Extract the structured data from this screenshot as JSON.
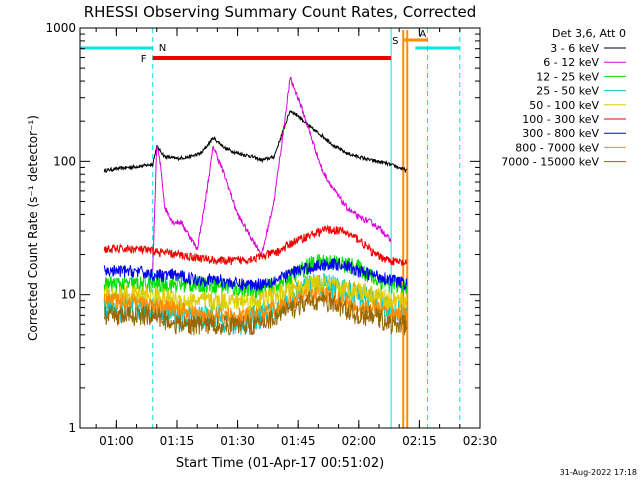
{
  "chart_data": {
    "type": "line",
    "title": "RHESSI Observing Summary Count Rates, Corrected",
    "xlabel": "Start Time (01-Apr-17 00:51:02)",
    "ylabel": "Corrected Count Rate (s⁻¹ detector⁻¹)",
    "y_scale": "log",
    "ylim": [
      1,
      1000
    ],
    "xlim": [
      "00:51",
      "02:30"
    ],
    "x_tick_labels": [
      "01:00",
      "01:15",
      "01:30",
      "01:45",
      "02:00",
      "02:15",
      "02:30"
    ],
    "y_tick_labels": [
      "1",
      "10",
      "100",
      "1000"
    ],
    "legend_title": "Det 3,6, Att 0",
    "legend_position": "top-right",
    "timestamp": "31-Aug-2022 17:18",
    "flags": [
      {
        "label": "N",
        "type": "night",
        "color": "#00e5e5"
      },
      {
        "label": "F",
        "type": "flare",
        "color": "#ee0000"
      },
      {
        "label": "S",
        "type": "saa",
        "color": "#00e5e5"
      },
      {
        "label": "A",
        "type": "attenuator",
        "color": "#ff8c00"
      }
    ],
    "series": [
      {
        "name": "3 - 6 keV",
        "color": "#000000",
        "x": [
          "00:57",
          "01:00",
          "01:03",
          "01:06",
          "01:09",
          "01:10",
          "01:12",
          "01:15",
          "01:18",
          "01:21",
          "01:24",
          "01:27",
          "01:30",
          "01:33",
          "01:36",
          "01:39",
          "01:41",
          "01:43",
          "01:45",
          "01:48",
          "01:51",
          "01:54",
          "01:57",
          "02:00",
          "02:03",
          "02:06",
          "02:09",
          "02:12"
        ],
        "values": [
          85,
          88,
          90,
          92,
          95,
          130,
          108,
          105,
          108,
          115,
          150,
          125,
          115,
          110,
          102,
          108,
          160,
          240,
          220,
          180,
          155,
          130,
          115,
          108,
          102,
          98,
          92,
          85
        ]
      },
      {
        "name": "6 - 12 keV",
        "color": "#dd00dd",
        "x": [
          "01:09",
          "01:10",
          "01:11",
          "01:12",
          "01:14",
          "01:16",
          "01:18",
          "01:20",
          "01:22",
          "01:24",
          "01:27",
          "01:30",
          "01:33",
          "01:36",
          "01:39",
          "01:41",
          "01:43",
          "01:45",
          "01:48",
          "01:51",
          "01:54",
          "01:57",
          "02:00",
          "02:03",
          "02:06",
          "02:08"
        ],
        "values": [
          15,
          135,
          90,
          45,
          35,
          35,
          28,
          22,
          50,
          130,
          75,
          40,
          28,
          20,
          50,
          140,
          420,
          300,
          160,
          85,
          60,
          45,
          38,
          35,
          30,
          25
        ]
      },
      {
        "name": "12 - 25 keV",
        "color": "#00dd00",
        "x": [
          "00:57",
          "01:05",
          "01:10",
          "01:15",
          "01:20",
          "01:25",
          "01:30",
          "01:35",
          "01:40",
          "01:44",
          "01:48",
          "01:52",
          "01:56",
          "02:00",
          "02:04",
          "02:08",
          "02:12"
        ],
        "values": [
          12,
          12,
          12,
          12,
          12,
          12,
          11,
          11,
          12,
          14,
          17,
          18,
          17,
          16,
          13,
          12,
          11
        ]
      },
      {
        "name": "25 - 50 keV",
        "color": "#00cccc",
        "x": [
          "00:57",
          "01:05",
          "01:10",
          "01:15",
          "01:20",
          "01:25",
          "01:30",
          "01:35",
          "01:40",
          "01:44",
          "01:48",
          "01:52",
          "01:56",
          "02:00",
          "02:04",
          "02:08",
          "02:12"
        ],
        "values": [
          8,
          8,
          8,
          7,
          7,
          7,
          6,
          7,
          8,
          10,
          12,
          12,
          11,
          10,
          9,
          8,
          7
        ]
      },
      {
        "name": "50 - 100 keV",
        "color": "#ddcc00",
        "x": [
          "00:57",
          "01:05",
          "01:10",
          "01:15",
          "01:20",
          "01:25",
          "01:30",
          "01:35",
          "01:40",
          "01:44",
          "01:48",
          "01:52",
          "01:56",
          "02:00",
          "02:04",
          "02:08",
          "02:12"
        ],
        "values": [
          10,
          10,
          10,
          9,
          9,
          9,
          9,
          9,
          10,
          11,
          12,
          12,
          11,
          11,
          10,
          9,
          9
        ]
      },
      {
        "name": "100 - 300 keV",
        "color": "#ee0000",
        "x": [
          "00:57",
          "01:05",
          "01:10",
          "01:15",
          "01:20",
          "01:25",
          "01:30",
          "01:35",
          "01:40",
          "01:44",
          "01:48",
          "01:52",
          "01:56",
          "02:00",
          "02:04",
          "02:08",
          "02:12"
        ],
        "values": [
          22,
          22,
          21,
          20,
          19,
          18,
          18,
          19,
          21,
          25,
          28,
          31,
          30,
          26,
          20,
          18,
          17
        ]
      },
      {
        "name": "300 - 800 keV",
        "color": "#0000ee",
        "x": [
          "00:57",
          "01:05",
          "01:10",
          "01:15",
          "01:20",
          "01:25",
          "01:30",
          "01:35",
          "01:40",
          "01:44",
          "01:48",
          "01:52",
          "01:56",
          "02:00",
          "02:04",
          "02:08",
          "02:12"
        ],
        "values": [
          15,
          15,
          14,
          14,
          13,
          13,
          12,
          12,
          13,
          15,
          16,
          17,
          17,
          15,
          14,
          13,
          12
        ]
      },
      {
        "name": "800 - 7000 keV",
        "color": "#ff8c00",
        "x": [
          "00:57",
          "01:05",
          "01:10",
          "01:15",
          "01:20",
          "01:25",
          "01:30",
          "01:35",
          "01:40",
          "01:44",
          "01:48",
          "01:52",
          "01:56",
          "02:00",
          "02:04",
          "02:08",
          "02:12"
        ],
        "values": [
          9,
          9,
          8,
          8,
          7,
          7,
          7,
          7,
          8,
          9,
          10,
          10,
          9,
          8,
          8,
          7,
          7
        ]
      },
      {
        "name": "7000 - 15000 keV",
        "color": "#996600",
        "x": [
          "00:57",
          "01:05",
          "01:10",
          "01:15",
          "01:20",
          "01:25",
          "01:30",
          "01:35",
          "01:40",
          "01:44",
          "01:48",
          "01:52",
          "01:56",
          "02:00",
          "02:04",
          "02:08",
          "02:12"
        ],
        "values": [
          7,
          7,
          7,
          6,
          6,
          6,
          6,
          6,
          7,
          8,
          9,
          9,
          8,
          7,
          7,
          6,
          6
        ]
      }
    ]
  }
}
